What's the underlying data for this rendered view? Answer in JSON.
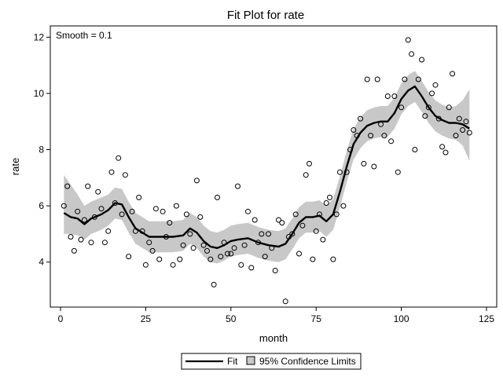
{
  "chart_data": {
    "type": "scatter",
    "title": "Fit Plot for rate",
    "xlabel": "month",
    "ylabel": "rate",
    "annotation": "Smooth = 0.1",
    "xlim": [
      -3,
      128
    ],
    "ylim": [
      2.4,
      12.4
    ],
    "xticks": [
      0,
      25,
      50,
      75,
      100,
      125
    ],
    "yticks": [
      4,
      6,
      8,
      10,
      12
    ],
    "grid": false,
    "legend": {
      "position": "bottom",
      "entries": [
        {
          "label": "Fit",
          "kind": "line"
        },
        {
          "label": "95% Confidence Limits",
          "kind": "band"
        }
      ]
    },
    "colors": {
      "fit": "#000000",
      "band": "#c8c8c8",
      "points": "#000000"
    },
    "points": [
      [
        1,
        6.0
      ],
      [
        2,
        6.7
      ],
      [
        3,
        4.9
      ],
      [
        4,
        4.4
      ],
      [
        5,
        5.8
      ],
      [
        6,
        4.8
      ],
      [
        7,
        5.5
      ],
      [
        8,
        6.7
      ],
      [
        9,
        4.7
      ],
      [
        10,
        5.6
      ],
      [
        11,
        6.5
      ],
      [
        12,
        5.9
      ],
      [
        13,
        4.7
      ],
      [
        14,
        5.1
      ],
      [
        15,
        7.2
      ],
      [
        16,
        6.1
      ],
      [
        17,
        7.7
      ],
      [
        18,
        5.7
      ],
      [
        19,
        7.1
      ],
      [
        20,
        4.2
      ],
      [
        21,
        5.8
      ],
      [
        22,
        5.1
      ],
      [
        23,
        6.3
      ],
      [
        24,
        5.1
      ],
      [
        25,
        3.9
      ],
      [
        26,
        4.7
      ],
      [
        27,
        4.4
      ],
      [
        28,
        5.9
      ],
      [
        29,
        4.1
      ],
      [
        30,
        5.8
      ],
      [
        31,
        4.9
      ],
      [
        32,
        5.4
      ],
      [
        33,
        3.9
      ],
      [
        34,
        6.0
      ],
      [
        35,
        4.1
      ],
      [
        36,
        4.6
      ],
      [
        37,
        5.7
      ],
      [
        38,
        5.0
      ],
      [
        39,
        4.5
      ],
      [
        40,
        6.9
      ],
      [
        41,
        5.6
      ],
      [
        42,
        4.6
      ],
      [
        43,
        4.4
      ],
      [
        44,
        4.1
      ],
      [
        45,
        3.2
      ],
      [
        46,
        6.3
      ],
      [
        47,
        4.2
      ],
      [
        48,
        4.7
      ],
      [
        49,
        4.3
      ],
      [
        50,
        4.3
      ],
      [
        51,
        4.5
      ],
      [
        52,
        6.7
      ],
      [
        53,
        3.9
      ],
      [
        54,
        4.6
      ],
      [
        55,
        5.8
      ],
      [
        56,
        3.8
      ],
      [
        57,
        5.5
      ],
      [
        58,
        4.7
      ],
      [
        59,
        5.0
      ],
      [
        60,
        4.2
      ],
      [
        61,
        5.0
      ],
      [
        62,
        4.5
      ],
      [
        63,
        3.7
      ],
      [
        64,
        5.5
      ],
      [
        65,
        5.4
      ],
      [
        66,
        2.6
      ],
      [
        67,
        4.9
      ],
      [
        68,
        5.0
      ],
      [
        69,
        5.7
      ],
      [
        70,
        4.3
      ],
      [
        71,
        5.3
      ],
      [
        72,
        7.1
      ],
      [
        73,
        7.5
      ],
      [
        74,
        4.1
      ],
      [
        75,
        5.1
      ],
      [
        76,
        5.7
      ],
      [
        77,
        4.8
      ],
      [
        78,
        6.1
      ],
      [
        79,
        6.3
      ],
      [
        80,
        4.1
      ],
      [
        81,
        5.7
      ],
      [
        82,
        7.2
      ],
      [
        83,
        6.0
      ],
      [
        84,
        7.2
      ],
      [
        85,
        8.0
      ],
      [
        86,
        8.7
      ],
      [
        87,
        8.5
      ],
      [
        88,
        9.1
      ],
      [
        89,
        7.5
      ],
      [
        90,
        10.5
      ],
      [
        91,
        8.5
      ],
      [
        92,
        7.4
      ],
      [
        93,
        10.5
      ],
      [
        94,
        8.9
      ],
      [
        95,
        8.5
      ],
      [
        96,
        9.9
      ],
      [
        97,
        8.3
      ],
      [
        98,
        9.9
      ],
      [
        99,
        7.2
      ],
      [
        100,
        9.5
      ],
      [
        101,
        10.5
      ],
      [
        102,
        11.9
      ],
      [
        103,
        11.4
      ],
      [
        104,
        8.0
      ],
      [
        105,
        10.5
      ],
      [
        106,
        11.2
      ],
      [
        107,
        9.2
      ],
      [
        108,
        9.5
      ],
      [
        109,
        10.0
      ],
      [
        110,
        10.3
      ],
      [
        111,
        9.1
      ],
      [
        112,
        8.1
      ],
      [
        113,
        7.9
      ],
      [
        114,
        9.5
      ],
      [
        115,
        10.7
      ],
      [
        116,
        8.5
      ],
      [
        117,
        9.1
      ],
      [
        118,
        8.7
      ],
      [
        119,
        9.0
      ],
      [
        120,
        8.6
      ]
    ],
    "fit": [
      [
        1,
        5.75
      ],
      [
        3,
        5.6
      ],
      [
        5,
        5.55
      ],
      [
        7,
        5.35
      ],
      [
        9,
        5.55
      ],
      [
        12,
        5.7
      ],
      [
        14,
        5.85
      ],
      [
        16,
        6.1
      ],
      [
        18,
        6.05
      ],
      [
        20,
        5.6
      ],
      [
        22,
        5.2
      ],
      [
        24,
        5.05
      ],
      [
        26,
        4.9
      ],
      [
        28,
        4.9
      ],
      [
        30,
        4.9
      ],
      [
        33,
        4.9
      ],
      [
        36,
        4.95
      ],
      [
        38,
        5.2
      ],
      [
        40,
        5.05
      ],
      [
        42,
        4.75
      ],
      [
        44,
        4.55
      ],
      [
        46,
        4.5
      ],
      [
        48,
        4.6
      ],
      [
        50,
        4.75
      ],
      [
        52,
        4.8
      ],
      [
        55,
        4.85
      ],
      [
        58,
        4.7
      ],
      [
        61,
        4.6
      ],
      [
        64,
        4.55
      ],
      [
        66,
        4.65
      ],
      [
        68,
        5.0
      ],
      [
        70,
        5.4
      ],
      [
        72,
        5.6
      ],
      [
        74,
        5.6
      ],
      [
        76,
        5.65
      ],
      [
        78,
        5.45
      ],
      [
        80,
        5.7
      ],
      [
        82,
        6.5
      ],
      [
        84,
        7.4
      ],
      [
        86,
        8.2
      ],
      [
        88,
        8.6
      ],
      [
        90,
        8.85
      ],
      [
        92,
        8.95
      ],
      [
        94,
        9.0
      ],
      [
        96,
        9.0
      ],
      [
        98,
        9.3
      ],
      [
        100,
        9.8
      ],
      [
        102,
        10.1
      ],
      [
        104,
        10.25
      ],
      [
        106,
        9.9
      ],
      [
        108,
        9.5
      ],
      [
        110,
        9.2
      ],
      [
        112,
        9.05
      ],
      [
        114,
        8.95
      ],
      [
        116,
        8.95
      ],
      [
        118,
        8.9
      ],
      [
        120,
        8.75
      ]
    ],
    "ci_lower": [
      [
        1,
        5.0
      ],
      [
        3,
        5.0
      ],
      [
        5,
        4.95
      ],
      [
        7,
        4.8
      ],
      [
        9,
        5.0
      ],
      [
        12,
        5.15
      ],
      [
        14,
        5.3
      ],
      [
        16,
        5.55
      ],
      [
        18,
        5.5
      ],
      [
        20,
        5.05
      ],
      [
        22,
        4.65
      ],
      [
        24,
        4.5
      ],
      [
        26,
        4.35
      ],
      [
        28,
        4.35
      ],
      [
        30,
        4.35
      ],
      [
        33,
        4.35
      ],
      [
        36,
        4.4
      ],
      [
        38,
        4.65
      ],
      [
        40,
        4.5
      ],
      [
        42,
        4.2
      ],
      [
        44,
        4.0
      ],
      [
        46,
        3.95
      ],
      [
        48,
        4.05
      ],
      [
        50,
        4.2
      ],
      [
        52,
        4.25
      ],
      [
        55,
        4.3
      ],
      [
        58,
        4.15
      ],
      [
        61,
        4.05
      ],
      [
        64,
        4.0
      ],
      [
        66,
        4.1
      ],
      [
        68,
        4.45
      ],
      [
        70,
        4.85
      ],
      [
        72,
        5.05
      ],
      [
        74,
        5.05
      ],
      [
        76,
        5.1
      ],
      [
        78,
        4.9
      ],
      [
        80,
        5.15
      ],
      [
        82,
        5.95
      ],
      [
        84,
        6.85
      ],
      [
        86,
        7.65
      ],
      [
        88,
        8.05
      ],
      [
        90,
        8.3
      ],
      [
        92,
        8.4
      ],
      [
        94,
        8.45
      ],
      [
        96,
        8.45
      ],
      [
        98,
        8.75
      ],
      [
        100,
        9.25
      ],
      [
        102,
        9.55
      ],
      [
        104,
        9.7
      ],
      [
        106,
        9.35
      ],
      [
        108,
        8.95
      ],
      [
        110,
        8.65
      ],
      [
        112,
        8.5
      ],
      [
        114,
        8.4
      ],
      [
        116,
        8.35
      ],
      [
        118,
        8.15
      ],
      [
        120,
        7.6
      ]
    ],
    "ci_upper": [
      [
        1,
        7.1
      ],
      [
        3,
        6.75
      ],
      [
        5,
        6.4
      ],
      [
        7,
        6.0
      ],
      [
        9,
        6.15
      ],
      [
        12,
        6.3
      ],
      [
        14,
        6.4
      ],
      [
        16,
        6.65
      ],
      [
        18,
        6.6
      ],
      [
        20,
        6.15
      ],
      [
        22,
        5.75
      ],
      [
        24,
        5.6
      ],
      [
        26,
        5.45
      ],
      [
        28,
        5.45
      ],
      [
        30,
        5.45
      ],
      [
        33,
        5.45
      ],
      [
        36,
        5.5
      ],
      [
        38,
        5.75
      ],
      [
        40,
        5.6
      ],
      [
        42,
        5.3
      ],
      [
        44,
        5.1
      ],
      [
        46,
        5.05
      ],
      [
        48,
        5.15
      ],
      [
        50,
        5.3
      ],
      [
        52,
        5.35
      ],
      [
        55,
        5.4
      ],
      [
        58,
        5.25
      ],
      [
        61,
        5.15
      ],
      [
        64,
        5.1
      ],
      [
        66,
        5.2
      ],
      [
        68,
        5.55
      ],
      [
        70,
        5.95
      ],
      [
        72,
        6.15
      ],
      [
        74,
        6.15
      ],
      [
        76,
        6.2
      ],
      [
        78,
        6.0
      ],
      [
        80,
        6.25
      ],
      [
        82,
        7.05
      ],
      [
        84,
        7.95
      ],
      [
        86,
        8.75
      ],
      [
        88,
        9.15
      ],
      [
        90,
        9.4
      ],
      [
        92,
        9.5
      ],
      [
        94,
        9.55
      ],
      [
        96,
        9.55
      ],
      [
        98,
        9.85
      ],
      [
        100,
        10.35
      ],
      [
        102,
        10.65
      ],
      [
        104,
        10.8
      ],
      [
        106,
        10.45
      ],
      [
        108,
        10.05
      ],
      [
        110,
        9.75
      ],
      [
        112,
        9.6
      ],
      [
        114,
        9.5
      ],
      [
        116,
        9.55
      ],
      [
        118,
        9.75
      ],
      [
        120,
        10.15
      ]
    ]
  }
}
